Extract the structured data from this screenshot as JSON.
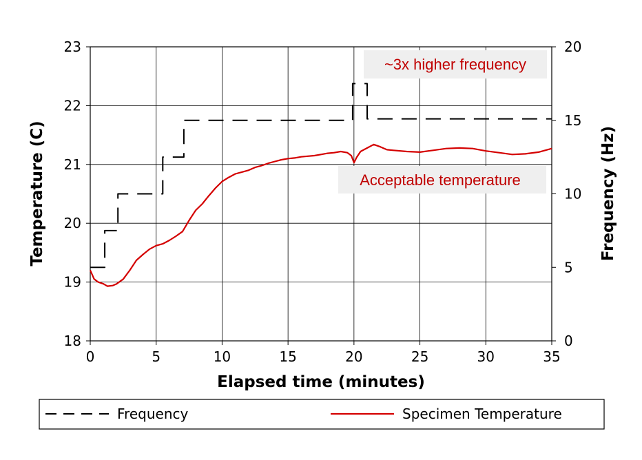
{
  "chart_data": {
    "type": "line",
    "title": "",
    "xlabel": "Elapsed time (minutes)",
    "ylabel": "Temperature (C)",
    "y2label": "Frequency (Hz)",
    "xlim": [
      0,
      35
    ],
    "ylim": [
      18,
      23
    ],
    "y2lim": [
      0,
      20
    ],
    "x_ticks": [
      0,
      5,
      10,
      15,
      20,
      25,
      30,
      35
    ],
    "y_ticks": [
      18,
      19,
      20,
      21,
      22,
      23
    ],
    "y2_ticks": [
      0,
      5,
      10,
      15,
      20
    ],
    "grid": true,
    "legend_position": "bottom",
    "annotations": [
      {
        "text": "~3x higher frequency"
      },
      {
        "text": "Acceptable temperature"
      }
    ],
    "series": [
      {
        "name": "Frequency",
        "axis": "right",
        "style": "dashed",
        "color": "#000000",
        "step": true,
        "x": [
          0,
          1.1,
          1.1,
          2.1,
          2.1,
          5.5,
          5.5,
          7.1,
          7.1,
          19.9,
          19.9,
          21.0,
          21.0,
          35
        ],
        "y": [
          5,
          5,
          7.5,
          7.5,
          10,
          10,
          12.5,
          12.5,
          15,
          15,
          17.5,
          17.5,
          15.1,
          15.1
        ]
      },
      {
        "name": "Specimen Temperature",
        "axis": "left",
        "style": "solid",
        "color": "#d40000",
        "x": [
          0,
          0.3,
          0.6,
          1.0,
          1.3,
          1.7,
          2.0,
          2.5,
          3.0,
          3.5,
          4.0,
          4.5,
          5.0,
          5.5,
          6.0,
          6.5,
          7.0,
          7.5,
          8.0,
          8.5,
          9.0,
          9.5,
          10.0,
          10.5,
          11.0,
          11.5,
          12.0,
          12.5,
          13.0,
          13.5,
          14.0,
          14.5,
          15.0,
          15.5,
          16.0,
          16.5,
          17.0,
          17.5,
          18.0,
          18.5,
          19.0,
          19.5,
          19.8,
          20.0,
          20.2,
          20.5,
          21.0,
          21.5,
          22.0,
          22.5,
          23.0,
          24.0,
          25.0,
          26.0,
          27.0,
          28.0,
          29.0,
          30.0,
          31.0,
          32.0,
          33.0,
          34.0,
          35.0
        ],
        "y": [
          19.2,
          19.05,
          19.0,
          18.97,
          18.93,
          18.94,
          18.97,
          19.05,
          19.2,
          19.37,
          19.47,
          19.56,
          19.62,
          19.65,
          19.71,
          19.78,
          19.86,
          20.05,
          20.22,
          20.33,
          20.47,
          20.6,
          20.71,
          20.78,
          20.84,
          20.87,
          20.9,
          20.95,
          20.98,
          21.02,
          21.05,
          21.08,
          21.1,
          21.11,
          21.13,
          21.14,
          21.15,
          21.17,
          21.19,
          21.2,
          21.22,
          21.2,
          21.15,
          21.03,
          21.12,
          21.22,
          21.28,
          21.34,
          21.3,
          21.25,
          21.24,
          21.22,
          21.21,
          21.24,
          21.27,
          21.28,
          21.27,
          21.23,
          21.2,
          21.17,
          21.18,
          21.21,
          21.27
        ]
      }
    ]
  }
}
